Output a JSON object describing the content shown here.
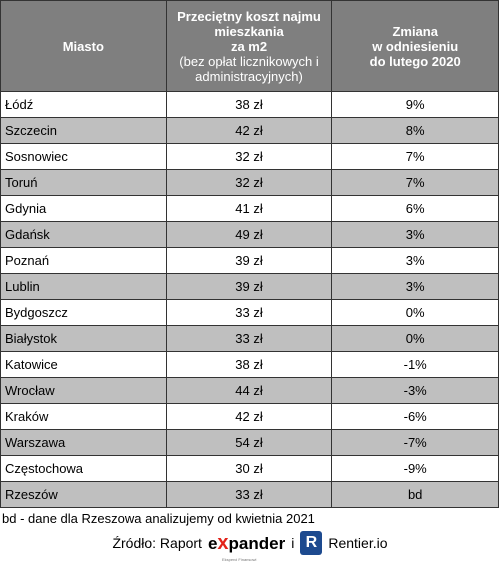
{
  "table": {
    "header": {
      "city": "Miasto",
      "cost": {
        "title_lines": [
          "Przeciętny koszt najmu",
          "mieszkania",
          "za m2"
        ],
        "note_lines": [
          "(bez opłat licznikowych i",
          "administracyjnych)"
        ]
      },
      "change": [
        "Zmiana",
        "w odniesieniu",
        "do lutego 2020"
      ]
    },
    "rows": [
      [
        "Łódź",
        "38 zł",
        "9%"
      ],
      [
        "Szczecin",
        "42 zł",
        "8%"
      ],
      [
        "Sosnowiec",
        "32 zł",
        "7%"
      ],
      [
        "Toruń",
        "32 zł",
        "7%"
      ],
      [
        "Gdynia",
        "41 zł",
        "6%"
      ],
      [
        "Gdańsk",
        "49 zł",
        "3%"
      ],
      [
        "Poznań",
        "39 zł",
        "3%"
      ],
      [
        "Lublin",
        "39 zł",
        "3%"
      ],
      [
        "Bydgoszcz",
        "33 zł",
        "0%"
      ],
      [
        "Białystok",
        "33 zł",
        "0%"
      ],
      [
        "Katowice",
        "38 zł",
        "-1%"
      ],
      [
        "Wrocław",
        "44 zł",
        "-3%"
      ],
      [
        "Kraków",
        "42 zł",
        "-6%"
      ],
      [
        "Warszawa",
        "54 zł",
        "-7%"
      ],
      [
        "Częstochowa",
        "30 zł",
        "-9%"
      ],
      [
        "Rzeszów",
        "33 zł",
        "bd"
      ]
    ]
  },
  "footnote": "bd - dane dla Rzeszowa analizujemy od kwietnia 2021",
  "source": {
    "label": "Źródło: Raport",
    "logo_e": "e",
    "logo_x": "x",
    "logo_rest": "pander",
    "logo_tagline": "Eksperci Finansowi",
    "joiner": "i",
    "icon": "R",
    "partner": "Rentier.io"
  }
}
